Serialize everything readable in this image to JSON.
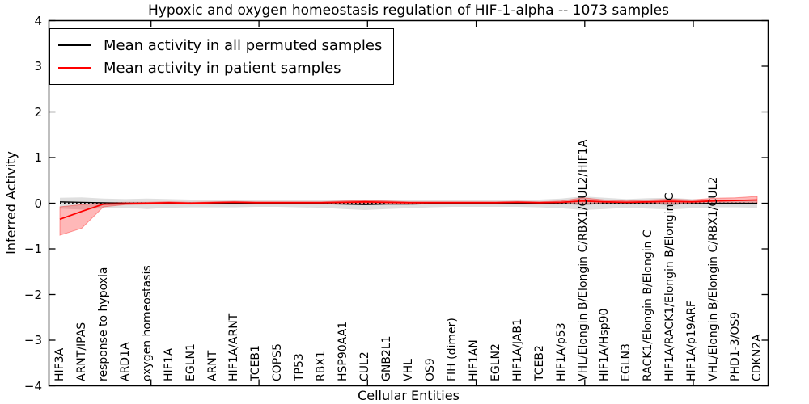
{
  "chart_data": {
    "type": "line",
    "title": "Hypoxic and oxygen homeostasis regulation of HIF-1-alpha -- 1073 samples",
    "xlabel": "Cellular Entities",
    "ylabel": "Inferred Activity",
    "ylim": [
      -4,
      4
    ],
    "yticks": [
      4,
      3,
      2,
      1,
      0,
      -1,
      -2,
      -3,
      -4
    ],
    "ytick_labels": [
      "4",
      "3",
      "2",
      "1",
      "0",
      "−1",
      "−2",
      "−3",
      "−4"
    ],
    "grid": false,
    "legend_position": "upper left",
    "zero_reference_line": "black dotted line at y=0",
    "categories": [
      "HIF3A",
      "ARNT/IPAS",
      "response to hypoxia",
      "ARD1A",
      "oxygen homeostasis",
      "HIF1A",
      "EGLN1",
      "ARNT",
      "HIF1A/ARNT",
      "TCEB1",
      "COPS5",
      "TP53",
      "RBX1",
      "HSP90AA1",
      "CUL2",
      "GNB2L1",
      "VHL",
      "OS9",
      "FIH (dimer)",
      "HIF1AN",
      "EGLN2",
      "HIF1A/JAB1",
      "TCEB2",
      "HIF1A/p53",
      "VHL/Elongin B/Elongin C/RBX1/CUL2/HIF1A",
      "HIF1A/Hsp90",
      "EGLN3",
      "RACK1/Elongin B/Elongin C",
      "HIF1A/RACK1/Elongin B/Elongin C",
      "HIF1A/p19ARF",
      "VHL/Elongin B/Elongin C/RBX1/CUL2",
      "PHD1-3/OS9",
      "CDKN2A"
    ],
    "series": [
      {
        "name": "Mean activity in all permuted samples",
        "color": "#000000",
        "line_width": 1.3,
        "band_color": "#808080",
        "band_opacity": 0.25,
        "values": [
          0.03,
          0.02,
          0.01,
          0.0,
          0.0,
          0.0,
          0.0,
          0.0,
          0.0,
          0.0,
          0.0,
          0.0,
          -0.01,
          -0.02,
          -0.03,
          -0.02,
          -0.02,
          -0.01,
          0.0,
          0.0,
          0.0,
          0.0,
          0.0,
          -0.01,
          -0.02,
          -0.01,
          -0.01,
          -0.01,
          -0.02,
          -0.01,
          0.0,
          0.0,
          0.0
        ],
        "band_upper": [
          0.12,
          0.13,
          0.1,
          0.09,
          0.1,
          0.09,
          0.08,
          0.08,
          0.08,
          0.08,
          0.08,
          0.08,
          0.08,
          0.08,
          0.08,
          0.08,
          0.08,
          0.08,
          0.08,
          0.08,
          0.08,
          0.08,
          0.08,
          0.1,
          0.15,
          0.12,
          0.09,
          0.11,
          0.12,
          0.09,
          0.08,
          0.08,
          0.08
        ],
        "band_lower": [
          -0.12,
          -0.14,
          -0.11,
          -0.1,
          -0.13,
          -0.1,
          -0.09,
          -0.09,
          -0.09,
          -0.08,
          -0.08,
          -0.09,
          -0.1,
          -0.13,
          -0.15,
          -0.13,
          -0.11,
          -0.09,
          -0.08,
          -0.08,
          -0.08,
          -0.08,
          -0.09,
          -0.11,
          -0.15,
          -0.13,
          -0.1,
          -0.12,
          -0.14,
          -0.11,
          -0.09,
          -0.09,
          -0.1
        ]
      },
      {
        "name": "Mean activity in patient samples",
        "color": "#ff0000",
        "line_width": 1.8,
        "band_color": "#ff0000",
        "band_opacity": 0.28,
        "values": [
          -0.35,
          -0.18,
          -0.02,
          -0.01,
          0.0,
          0.01,
          0.0,
          0.01,
          0.02,
          0.01,
          0.01,
          0.01,
          0.01,
          0.02,
          0.03,
          0.02,
          0.01,
          0.01,
          0.01,
          0.01,
          0.01,
          0.02,
          0.01,
          0.02,
          0.05,
          0.03,
          0.02,
          0.03,
          0.04,
          0.03,
          0.05,
          0.06,
          0.07
        ],
        "band_upper": [
          -0.08,
          -0.03,
          0.01,
          0.02,
          0.02,
          0.03,
          0.02,
          0.03,
          0.04,
          0.03,
          0.03,
          0.03,
          0.03,
          0.05,
          0.06,
          0.05,
          0.03,
          0.03,
          0.03,
          0.03,
          0.03,
          0.04,
          0.03,
          0.05,
          0.12,
          0.07,
          0.05,
          0.07,
          0.09,
          0.07,
          0.11,
          0.12,
          0.15
        ],
        "band_lower": [
          -0.7,
          -0.55,
          -0.08,
          -0.03,
          -0.02,
          -0.01,
          -0.02,
          -0.01,
          0.0,
          -0.01,
          -0.01,
          -0.01,
          -0.01,
          -0.01,
          0.0,
          -0.01,
          -0.01,
          -0.01,
          -0.01,
          -0.01,
          -0.01,
          0.0,
          -0.01,
          -0.01,
          -0.02,
          -0.01,
          -0.01,
          -0.01,
          -0.01,
          -0.01,
          -0.01,
          0.0,
          0.0
        ]
      }
    ]
  }
}
